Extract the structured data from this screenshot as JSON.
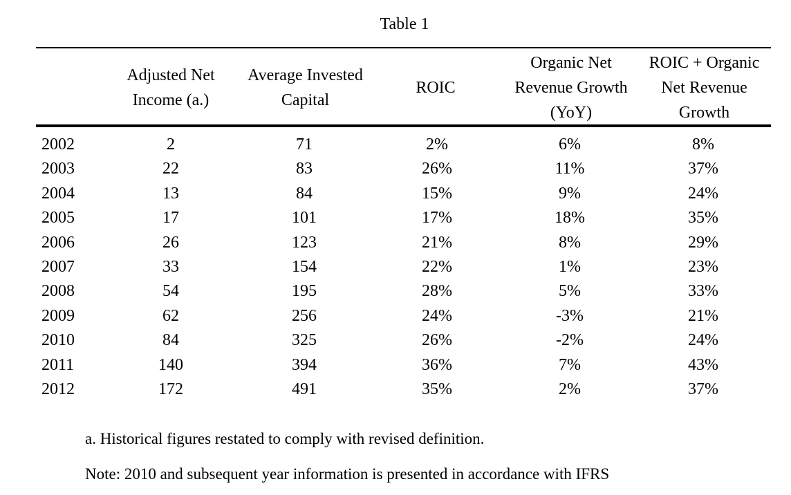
{
  "title": "Table 1",
  "columns": [
    {
      "key": "year",
      "label": ""
    },
    {
      "key": "adj_net_income",
      "label": "Adjusted Net\nIncome (a.)"
    },
    {
      "key": "avg_invested_capital",
      "label": "Average Invested\nCapital"
    },
    {
      "key": "roic",
      "label": "ROIC"
    },
    {
      "key": "organic_growth",
      "label": "Organic Net\nRevenue Growth\n(YoY)"
    },
    {
      "key": "roic_plus_growth",
      "label": "ROIC + Organic\nNet Revenue\nGrowth"
    }
  ],
  "rows": [
    [
      "2002",
      "2",
      "71",
      "2%",
      "6%",
      "8%"
    ],
    [
      "2003",
      "22",
      "83",
      "26%",
      "11%",
      "37%"
    ],
    [
      "2004",
      "13",
      "84",
      "15%",
      "9%",
      "24%"
    ],
    [
      "2005",
      "17",
      "101",
      "17%",
      "18%",
      "35%"
    ],
    [
      "2006",
      "26",
      "123",
      "21%",
      "8%",
      "29%"
    ],
    [
      "2007",
      "33",
      "154",
      "22%",
      "1%",
      "23%"
    ],
    [
      "2008",
      "54",
      "195",
      "28%",
      "5%",
      "33%"
    ],
    [
      "2009",
      "62",
      "256",
      "24%",
      "-3%",
      "21%"
    ],
    [
      "2010",
      "84",
      "325",
      "26%",
      "-2%",
      "24%"
    ],
    [
      "2011",
      "140",
      "394",
      "36%",
      "7%",
      "43%"
    ],
    [
      "2012",
      "172",
      "491",
      "35%",
      "2%",
      "37%"
    ]
  ],
  "footnotes": {
    "a": "a.  Historical figures restated to comply with revised definition.",
    "note": "Note: 2010 and subsequent year information is presented in accordance with IFRS"
  }
}
